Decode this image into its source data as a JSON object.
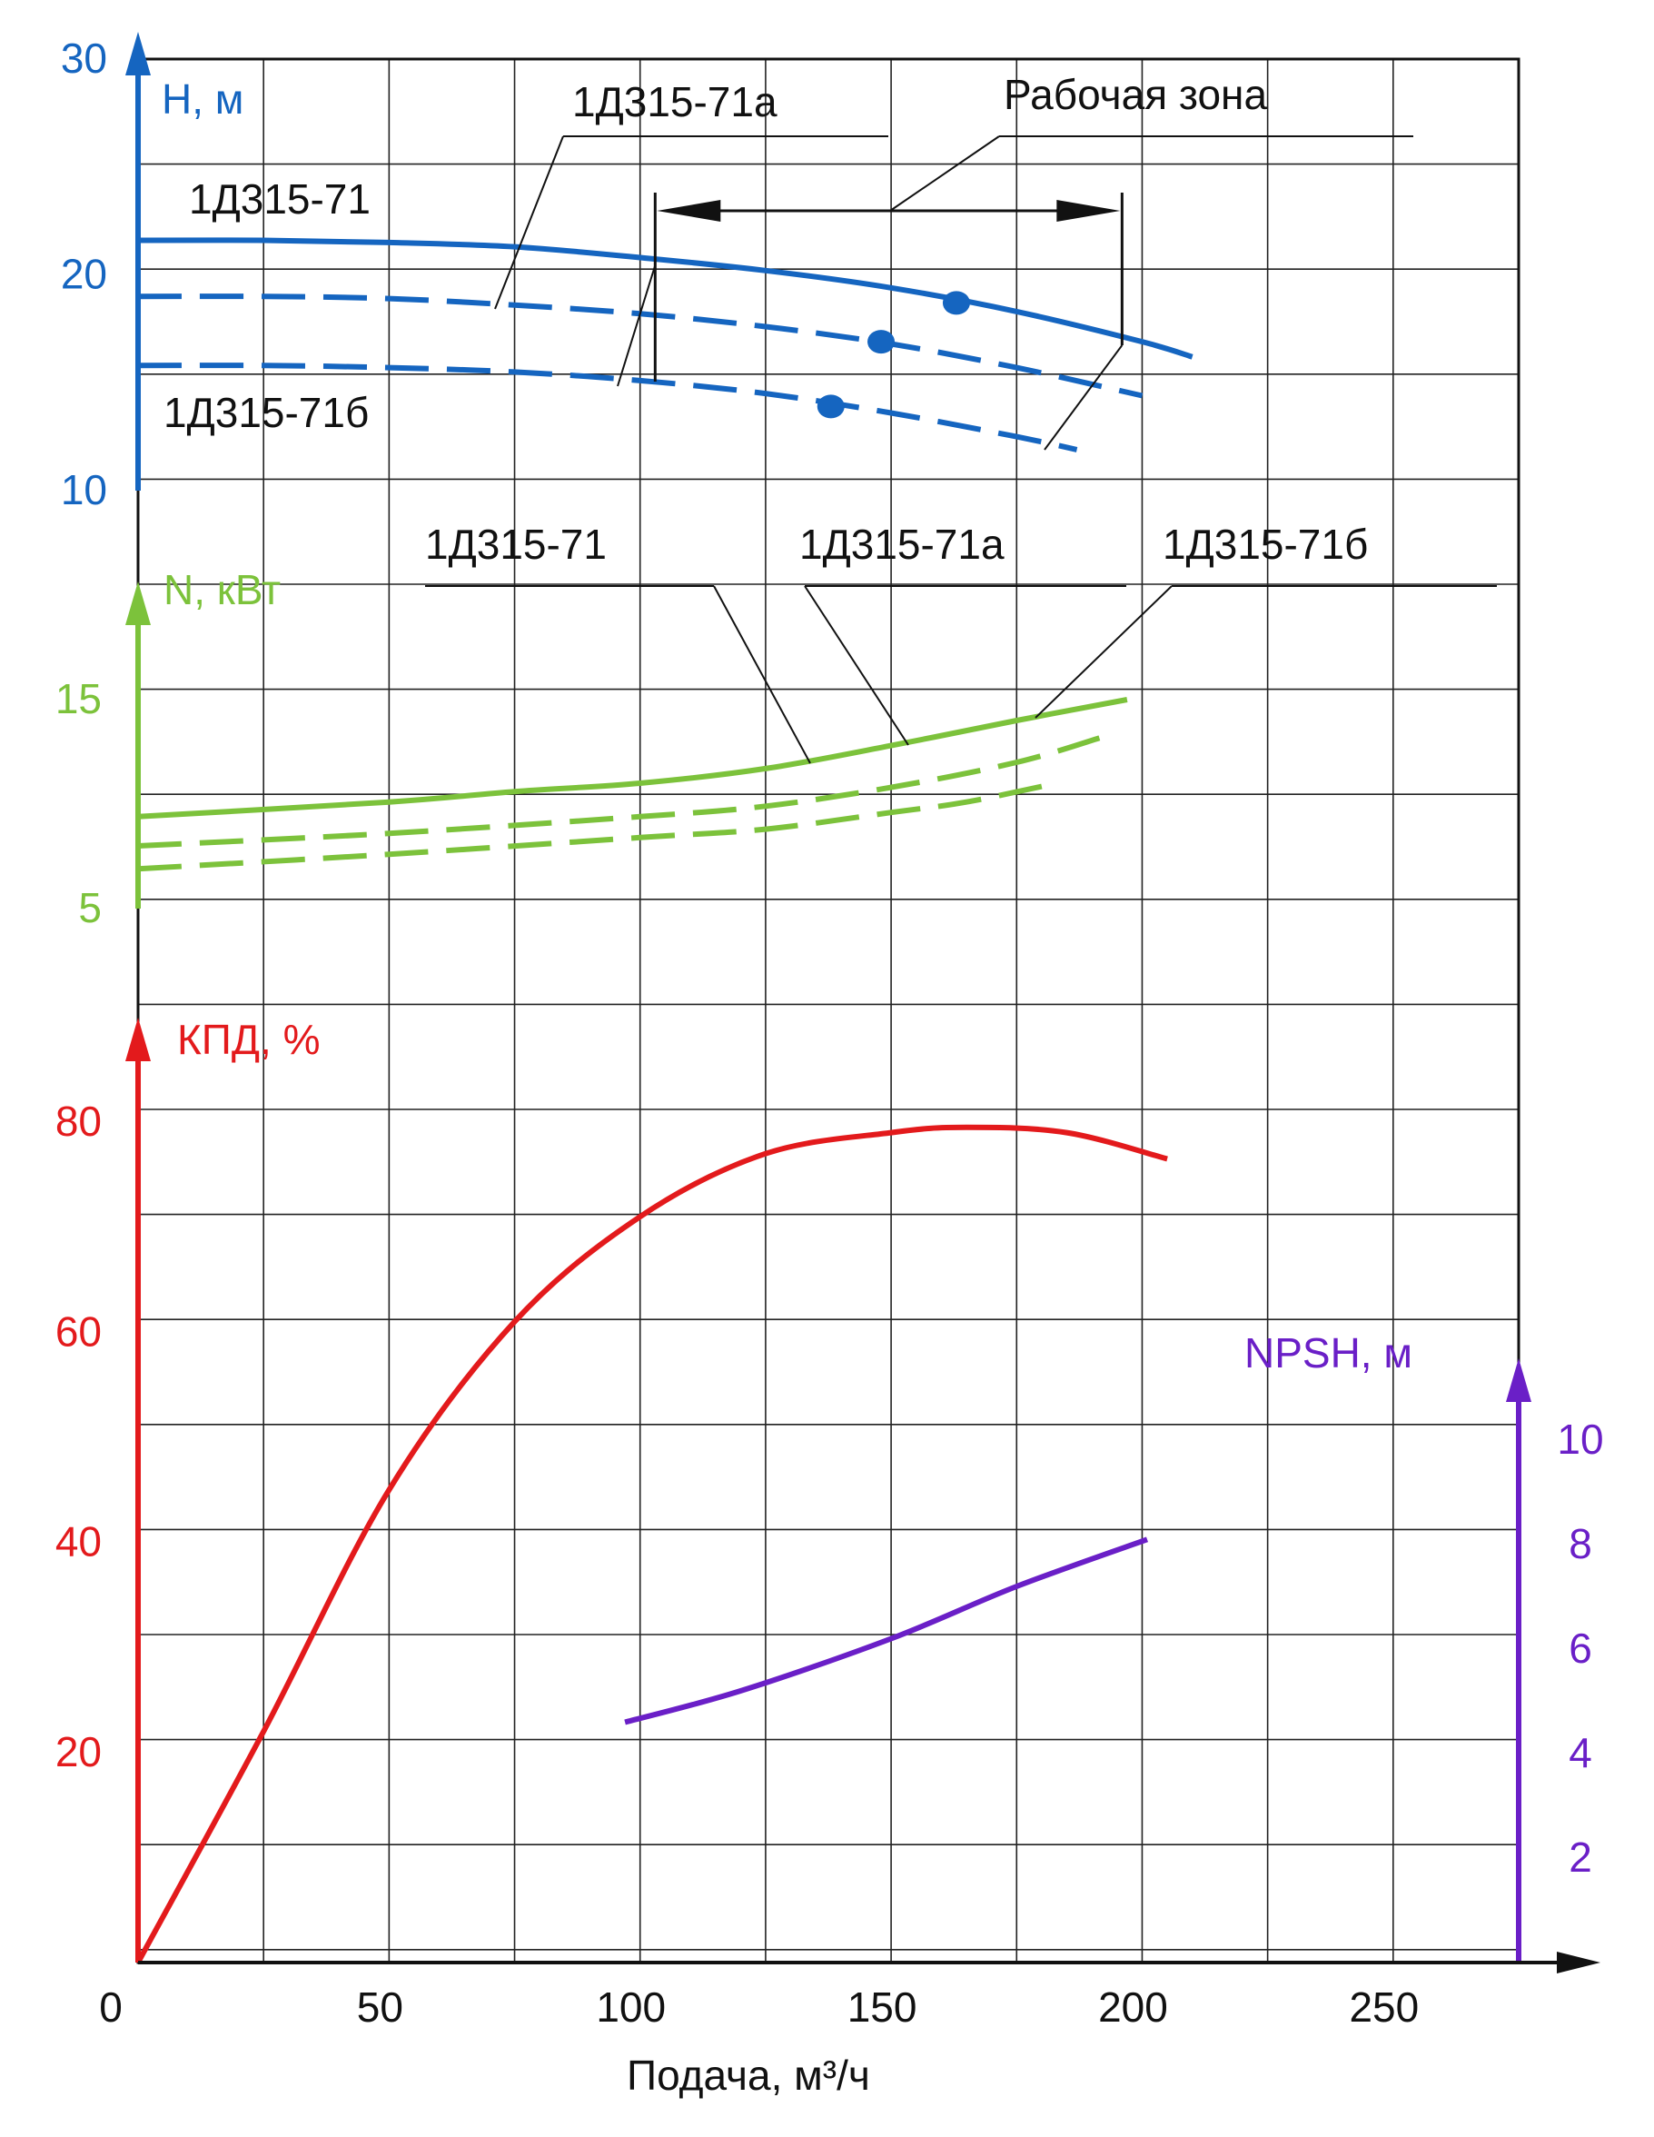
{
  "colors": {
    "head": "#1565c0",
    "power": "#7cc23b",
    "efficiency": "#e31a1c",
    "npsh": "#6a1fc7",
    "grid": "#222222"
  },
  "chart_data": {
    "type": "line",
    "xlabel": "Подача, м³/ч",
    "xlim": [
      0,
      275
    ],
    "x_ticks": [
      "0",
      "50",
      "100",
      "150",
      "200",
      "250"
    ],
    "x_tick_values": [
      0,
      50,
      100,
      150,
      200,
      250
    ],
    "grid": true,
    "panels": {
      "head": {
        "ylabel": "H, м",
        "ylim": [
          10,
          30
        ],
        "y_ticks": [
          "10",
          "20",
          "30"
        ],
        "y_tick_values": [
          10,
          20,
          30
        ],
        "series": [
          {
            "name": "1Д315-71",
            "style": "solid",
            "x": [
              0,
              25,
              50,
              75,
              100,
              125,
              150,
              175,
              200,
              210
            ],
            "y": [
              21.6,
              21.6,
              21.5,
              21.3,
              20.8,
              20.2,
              19.4,
              18.3,
              16.9,
              16.2
            ]
          },
          {
            "name": "1Д315-71а",
            "style": "dashed",
            "x": [
              0,
              25,
              50,
              75,
              100,
              125,
              150,
              175,
              200
            ],
            "y": [
              19.0,
              19.0,
              18.9,
              18.6,
              18.2,
              17.6,
              16.8,
              15.7,
              14.4
            ]
          },
          {
            "name": "1Д315-71б",
            "style": "dashed",
            "x": [
              0,
              25,
              50,
              75,
              100,
              125,
              150,
              175,
              187
            ],
            "y": [
              15.8,
              15.8,
              15.7,
              15.5,
              15.1,
              14.5,
              13.6,
              12.5,
              11.9
            ]
          }
        ],
        "markers": [
          {
            "x": 163,
            "y": 18.7
          },
          {
            "x": 148,
            "y": 16.9
          },
          {
            "x": 138,
            "y": 13.9
          }
        ]
      },
      "power": {
        "ylabel": "N, кВт",
        "ylim": [
          5,
          20
        ],
        "y_ticks": [
          "5",
          "15"
        ],
        "y_tick_values": [
          5,
          15
        ],
        "series": [
          {
            "name": "1Д315-71",
            "style": "solid",
            "x": [
              0,
              50,
              75,
              100,
              125,
              150,
              175,
              197
            ],
            "y": [
              9.4,
              10.1,
              10.6,
              11.0,
              11.7,
              12.8,
              14.0,
              15.0
            ]
          },
          {
            "name": "1Д315-71а",
            "style": "dashed",
            "x": [
              0,
              50,
              100,
              125,
              150,
              175,
              192
            ],
            "y": [
              8.0,
              8.6,
              9.4,
              9.9,
              10.8,
              12.0,
              13.2
            ]
          },
          {
            "name": "1Д315-71б",
            "style": "dashed",
            "x": [
              0,
              50,
              100,
              125,
              150,
              165,
              183
            ],
            "y": [
              6.9,
              7.6,
              8.4,
              8.8,
              9.6,
              10.1,
              11.0
            ]
          }
        ]
      },
      "efficiency": {
        "ylabel": "КПД, %",
        "ylim": [
          0,
          90
        ],
        "y_ticks": [
          "20",
          "40",
          "60",
          "80"
        ],
        "y_tick_values": [
          20,
          40,
          60,
          80
        ],
        "series": [
          {
            "name": "",
            "style": "solid",
            "x": [
              0,
              25,
              50,
              75,
              100,
              125,
              150,
              165,
              185,
              205
            ],
            "y": [
              0,
              22,
              45,
              61,
              71,
              77,
              79,
              79.5,
              79,
              76.5
            ]
          }
        ]
      },
      "npsh": {
        "ylabel": "NPSH, м",
        "ylim": [
          0,
          11.5
        ],
        "y_ticks": [
          "2",
          "4",
          "6",
          "8",
          "10"
        ],
        "y_tick_values": [
          2,
          4,
          6,
          8,
          10
        ],
        "series": [
          {
            "name": "",
            "style": "solid",
            "x": [
              97,
              120,
              150,
              175,
              201
            ],
            "y": [
              4.6,
              5.2,
              6.2,
              7.2,
              8.1
            ]
          }
        ]
      }
    },
    "annotations": {
      "work_zone": {
        "label": "Рабочая зона",
        "x_from": 103,
        "x_to": 196
      },
      "head_curve_labels": [
        "1Д315-71",
        "1Д315-71а",
        "1Д315-71б"
      ],
      "power_curve_labels": [
        "1Д315-71",
        "1Д315-71а",
        "1Д315-71б"
      ]
    }
  }
}
